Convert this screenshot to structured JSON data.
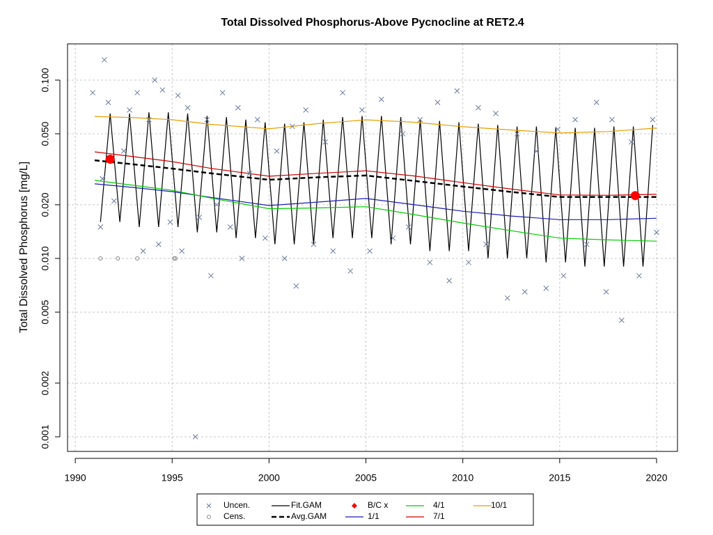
{
  "chart_data": {
    "type": "line",
    "title": "Total Dissolved Phosphorus-Above Pycnocline at RET2.4",
    "y_label": "Total Dissolved Phosphorus [mg/L]",
    "ylog": true,
    "grid": true,
    "xlim": [
      1989.6,
      2021.08
    ],
    "xticks": [
      1990,
      1995,
      2000,
      2005,
      2010,
      2015,
      2020
    ],
    "ylim": [
      0.000828,
      0.1596
    ],
    "yticks": [
      0.001,
      0.002,
      0.005,
      {
        "value": 0.01,
        "label": "0.010"
      },
      {
        "value": 0.02,
        "label": "0.020"
      },
      {
        "value": 0.05,
        "label": "0.050"
      },
      {
        "value": 0.1,
        "label": "0.100"
      }
    ],
    "series": [
      {
        "name": "Uncen.",
        "style": "x",
        "color": "#6b7b9b",
        "x": [
          1990.9,
          1991.5,
          1991.7,
          1991.4,
          1991.3,
          1992.0,
          1992.5,
          1992.8,
          1993.2,
          1993.5,
          1993.8,
          1994.1,
          1994.3,
          1994.5,
          1994.9,
          1995.3,
          1995.5,
          1995.8,
          1996.2,
          1996.4,
          1996.8,
          1997.0,
          1997.3,
          1997.6,
          1998.0,
          1998.4,
          1998.6,
          1999.0,
          1999.4,
          1999.8,
          2000.4,
          2000.8,
          2001.2,
          2001.4,
          2001.9,
          2002.3,
          2002.9,
          2003.3,
          2003.8,
          2004.2,
          2004.8,
          2005.2,
          2005.8,
          2006.4,
          2006.9,
          2007.2,
          2007.8,
          2008.3,
          2008.7,
          2009.3,
          2009.7,
          2010.3,
          2010.8,
          2011.2,
          2011.7,
          2012.3,
          2012.8,
          2013.2,
          2013.8,
          2014.3,
          2014.9,
          2015.2,
          2015.8,
          2016.4,
          2016.9,
          2017.4,
          2017.7,
          2018.2,
          2018.7,
          2019.1,
          2019.8,
          2020.0
        ],
        "values": [
          0.085,
          0.13,
          0.075,
          0.028,
          0.015,
          0.021,
          0.04,
          0.068,
          0.085,
          0.011,
          0.06,
          0.1,
          0.012,
          0.088,
          0.016,
          0.082,
          0.011,
          0.07,
          0.001,
          0.017,
          0.06,
          0.008,
          0.02,
          0.085,
          0.015,
          0.07,
          0.01,
          0.03,
          0.06,
          0.013,
          0.04,
          0.01,
          0.055,
          0.007,
          0.068,
          0.012,
          0.045,
          0.011,
          0.085,
          0.0085,
          0.068,
          0.011,
          0.078,
          0.013,
          0.05,
          0.015,
          0.06,
          0.0095,
          0.075,
          0.0075,
          0.087,
          0.0095,
          0.07,
          0.012,
          0.065,
          0.006,
          0.05,
          0.0065,
          0.04,
          0.0068,
          0.053,
          0.008,
          0.06,
          0.012,
          0.075,
          0.0065,
          0.06,
          0.0045,
          0.045,
          0.008,
          0.06,
          0.014
        ]
      },
      {
        "name": "Cens.",
        "style": "o",
        "color": "#888888",
        "x": [
          1991.3,
          1992.2,
          1993.2,
          1995.1,
          1995.17
        ],
        "values": [
          0.01,
          0.01,
          0.01,
          0.01,
          0.01
        ]
      },
      {
        "name": "Fit.GAM",
        "style": "line",
        "color": "#000000",
        "x": [
          1991.3,
          1991.8,
          1992.3,
          1992.8,
          1993.3,
          1993.8,
          1994.3,
          1994.8,
          1995.3,
          1995.8,
          1996.3,
          1996.8,
          1997.3,
          1997.8,
          1998.3,
          1998.8,
          1999.3,
          1999.8,
          2000.3,
          2000.8,
          2001.3,
          2001.8,
          2002.3,
          2002.8,
          2003.3,
          2003.8,
          2004.3,
          2004.8,
          2005.3,
          2005.8,
          2006.3,
          2006.8,
          2007.3,
          2007.8,
          2008.3,
          2008.8,
          2009.3,
          2009.8,
          2010.3,
          2010.8,
          2011.3,
          2011.8,
          2012.3,
          2012.8,
          2013.3,
          2013.8,
          2014.3,
          2014.8,
          2015.3,
          2015.8,
          2016.3,
          2016.8,
          2017.3,
          2017.8,
          2018.3,
          2018.8,
          2019.3,
          2019.8
        ],
        "values": [
          0.016,
          0.065,
          0.016,
          0.065,
          0.015,
          0.066,
          0.015,
          0.066,
          0.015,
          0.065,
          0.014,
          0.063,
          0.014,
          0.062,
          0.013,
          0.06,
          0.013,
          0.058,
          0.012,
          0.057,
          0.012,
          0.058,
          0.012,
          0.06,
          0.013,
          0.062,
          0.013,
          0.063,
          0.013,
          0.063,
          0.012,
          0.062,
          0.012,
          0.06,
          0.011,
          0.059,
          0.011,
          0.058,
          0.011,
          0.057,
          0.01,
          0.056,
          0.01,
          0.055,
          0.01,
          0.055,
          0.0095,
          0.054,
          0.0095,
          0.054,
          0.009,
          0.054,
          0.009,
          0.055,
          0.009,
          0.055,
          0.009,
          0.056
        ]
      },
      {
        "name": "Avg.GAM",
        "style": "dashed",
        "color": "#000000",
        "x": [
          1991,
          1993,
          1995,
          1997,
          2000,
          2002.5,
          2005,
          2007.5,
          2010,
          2012.5,
          2015,
          2017.5,
          2020
        ],
        "values": [
          0.0355,
          0.0337,
          0.0319,
          0.03,
          0.0276,
          0.0285,
          0.0292,
          0.0272,
          0.0253,
          0.0236,
          0.0221,
          0.0221,
          0.0221
        ]
      },
      {
        "name": "B/C x",
        "style": "dot",
        "color": "#ff0000",
        "x": [
          1991.8,
          2018.9
        ],
        "values": [
          0.036,
          0.0225
        ]
      },
      {
        "name": "1/1",
        "style": "line",
        "color": "#1c1cb4",
        "x": [
          1991,
          1993,
          1995,
          1997,
          2000,
          2002.5,
          2005,
          2007.5,
          2010,
          2012.5,
          2015,
          2017.5,
          2020
        ],
        "values": [
          0.0262,
          0.025,
          0.0237,
          0.022,
          0.0198,
          0.0207,
          0.0217,
          0.02,
          0.0184,
          0.0173,
          0.0165,
          0.0165,
          0.0168
        ]
      },
      {
        "name": "4/1",
        "style": "line",
        "color": "#00cc00",
        "x": [
          1991,
          1993,
          1995,
          1997,
          2000,
          2002.5,
          2005,
          2007.5,
          2010,
          2012.5,
          2015,
          2017.5,
          2020
        ],
        "values": [
          0.0274,
          0.0257,
          0.0241,
          0.0218,
          0.019,
          0.0192,
          0.0195,
          0.0176,
          0.0158,
          0.0143,
          0.013,
          0.0127,
          0.0125
        ]
      },
      {
        "name": "7/1",
        "style": "line",
        "color": "#cc0000",
        "x": [
          1991,
          1993,
          1995,
          1997,
          2000,
          2002.5,
          2005,
          2007.5,
          2010,
          2012.5,
          2015,
          2017.5,
          2020
        ],
        "values": [
          0.0396,
          0.0372,
          0.0349,
          0.032,
          0.0289,
          0.03,
          0.031,
          0.029,
          0.0266,
          0.0245,
          0.0227,
          0.0226,
          0.0229
        ]
      },
      {
        "name": "10/1",
        "style": "line",
        "color": "#e69f00",
        "x": [
          1991,
          1993,
          1995,
          1997,
          2000,
          2002.5,
          2005,
          2007.5,
          2010,
          2012.5,
          2015,
          2017.5,
          2020
        ],
        "values": [
          0.0626,
          0.0616,
          0.06,
          0.0565,
          0.0533,
          0.057,
          0.0599,
          0.058,
          0.0548,
          0.0525,
          0.0505,
          0.0515,
          0.0538
        ]
      }
    ]
  }
}
